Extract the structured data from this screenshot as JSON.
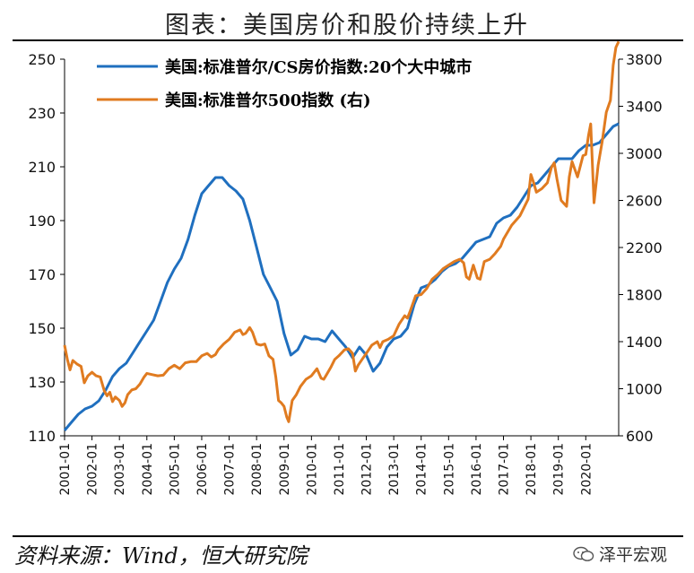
{
  "header": {
    "title": "图表：美国房价和股价持续上升"
  },
  "footer": {
    "source": "资料来源：Wind，恒大研究院",
    "watermark": "泽平宏观"
  },
  "chart_data": {
    "type": "line",
    "title": "图表：美国房价和股价持续上升",
    "left_axis": {
      "ylim": [
        110,
        250
      ],
      "ticks": [
        110,
        130,
        150,
        170,
        190,
        210,
        230,
        250
      ]
    },
    "right_axis": {
      "ylim": [
        600,
        3800
      ],
      "ticks": [
        600,
        1000,
        1400,
        1800,
        2200,
        2600,
        3000,
        3400,
        3800
      ]
    },
    "x_ticks": [
      "2001-01",
      "2002-01",
      "2003-01",
      "2004-01",
      "2005-01",
      "2006-01",
      "2007-01",
      "2008-01",
      "2009-01",
      "2010-01",
      "2011-01",
      "2012-01",
      "2013-01",
      "2014-01",
      "2015-01",
      "2016-01",
      "2017-01",
      "2018-01",
      "2019-01",
      "2020-01"
    ],
    "x_range": [
      2001.0,
      2021.2
    ],
    "legend_placement": "top-center",
    "grid": false,
    "series": [
      {
        "name": "美国:标准普尔/CS房价指数:20个大中城市",
        "axis": "left",
        "color": "#1f6fbf",
        "x": [
          2001.0,
          2001.25,
          2001.5,
          2001.75,
          2002.0,
          2002.25,
          2002.5,
          2002.75,
          2003.0,
          2003.25,
          2003.5,
          2003.75,
          2004.0,
          2004.25,
          2004.5,
          2004.75,
          2005.0,
          2005.25,
          2005.5,
          2005.75,
          2006.0,
          2006.25,
          2006.5,
          2006.75,
          2007.0,
          2007.25,
          2007.5,
          2007.75,
          2008.0,
          2008.25,
          2008.5,
          2008.75,
          2009.0,
          2009.25,
          2009.5,
          2009.75,
          2010.0,
          2010.25,
          2010.5,
          2010.75,
          2011.0,
          2011.25,
          2011.5,
          2011.75,
          2012.0,
          2012.25,
          2012.5,
          2012.75,
          2013.0,
          2013.25,
          2013.5,
          2013.75,
          2014.0,
          2014.25,
          2014.5,
          2014.75,
          2015.0,
          2015.25,
          2015.5,
          2015.75,
          2016.0,
          2016.25,
          2016.5,
          2016.75,
          2017.0,
          2017.25,
          2017.5,
          2017.75,
          2018.0,
          2018.25,
          2018.5,
          2018.75,
          2019.0,
          2019.25,
          2019.5,
          2019.75,
          2020.0,
          2020.25,
          2020.5,
          2020.75,
          2021.0,
          2021.2
        ],
        "values": [
          112,
          115,
          118,
          120,
          121,
          123,
          127,
          132,
          135,
          137,
          141,
          145,
          149,
          153,
          160,
          167,
          172,
          176,
          183,
          192,
          200,
          203,
          206,
          206,
          203,
          201,
          198,
          190,
          180,
          170,
          165,
          160,
          148,
          140,
          142,
          147,
          146,
          146,
          145,
          149,
          146,
          143,
          139,
          143,
          140,
          134,
          137,
          143,
          146,
          147,
          150,
          159,
          165,
          166,
          168,
          171,
          173,
          174,
          176,
          179,
          182,
          183,
          184,
          189,
          191,
          192,
          195,
          199,
          203,
          204,
          207,
          210,
          213,
          213,
          213,
          216,
          218,
          218,
          219,
          222,
          225,
          226
        ]
      },
      {
        "name": "美国:标准普尔500指数 (右)",
        "axis": "right",
        "color": "#e07b20",
        "x": [
          2001.0,
          2001.1,
          2001.2,
          2001.3,
          2001.45,
          2001.6,
          2001.72,
          2001.85,
          2002.0,
          2002.15,
          2002.3,
          2002.45,
          2002.55,
          2002.65,
          2002.75,
          2002.85,
          2003.0,
          2003.1,
          2003.2,
          2003.3,
          2003.45,
          2003.6,
          2003.75,
          2003.9,
          2004.0,
          2004.2,
          2004.4,
          2004.6,
          2004.8,
          2005.0,
          2005.2,
          2005.4,
          2005.6,
          2005.8,
          2006.0,
          2006.2,
          2006.35,
          2006.5,
          2006.6,
          2006.8,
          2007.0,
          2007.2,
          2007.4,
          2007.5,
          2007.6,
          2007.75,
          2007.85,
          2008.0,
          2008.15,
          2008.3,
          2008.45,
          2008.6,
          2008.7,
          2008.8,
          2008.9,
          2009.0,
          2009.1,
          2009.17,
          2009.3,
          2009.45,
          2009.6,
          2009.8,
          2010.0,
          2010.2,
          2010.35,
          2010.45,
          2010.55,
          2010.7,
          2010.85,
          2011.0,
          2011.2,
          2011.35,
          2011.5,
          2011.6,
          2011.7,
          2011.85,
          2012.0,
          2012.2,
          2012.4,
          2012.5,
          2012.6,
          2012.8,
          2013.0,
          2013.2,
          2013.4,
          2013.5,
          2013.6,
          2013.8,
          2014.0,
          2014.2,
          2014.4,
          2014.6,
          2014.8,
          2015.0,
          2015.2,
          2015.4,
          2015.55,
          2015.65,
          2015.75,
          2015.9,
          2016.05,
          2016.15,
          2016.3,
          2016.5,
          2016.7,
          2016.9,
          2017.0,
          2017.3,
          2017.6,
          2017.9,
          2018.0,
          2018.1,
          2018.2,
          2018.4,
          2018.6,
          2018.75,
          2018.85,
          2018.95,
          2019.1,
          2019.3,
          2019.4,
          2019.5,
          2019.7,
          2019.9,
          2020.0,
          2020.1,
          2020.18,
          2020.3,
          2020.45,
          2020.6,
          2020.75,
          2020.9,
          2021.0,
          2021.1,
          2021.2
        ],
        "values": [
          1370,
          1250,
          1160,
          1240,
          1210,
          1190,
          1050,
          1110,
          1140,
          1110,
          1100,
          980,
          940,
          970,
          890,
          930,
          900,
          850,
          880,
          950,
          990,
          1000,
          1040,
          1100,
          1130,
          1120,
          1110,
          1115,
          1170,
          1200,
          1170,
          1220,
          1230,
          1230,
          1280,
          1300,
          1270,
          1290,
          1330,
          1380,
          1420,
          1480,
          1500,
          1460,
          1470,
          1520,
          1480,
          1380,
          1370,
          1380,
          1280,
          1250,
          1100,
          900,
          880,
          850,
          760,
          720,
          900,
          950,
          1020,
          1080,
          1110,
          1170,
          1090,
          1080,
          1120,
          1180,
          1250,
          1280,
          1330,
          1340,
          1300,
          1150,
          1200,
          1250,
          1300,
          1370,
          1400,
          1350,
          1400,
          1420,
          1450,
          1550,
          1620,
          1600,
          1660,
          1790,
          1800,
          1850,
          1930,
          1970,
          2020,
          2050,
          2080,
          2100,
          2070,
          1950,
          1930,
          2050,
          1940,
          1930,
          2080,
          2100,
          2150,
          2210,
          2270,
          2390,
          2470,
          2610,
          2820,
          2750,
          2670,
          2700,
          2750,
          2880,
          2920,
          2780,
          2600,
          2550,
          2800,
          2930,
          2800,
          2980,
          2990,
          3150,
          3250,
          2580,
          2900,
          3100,
          3350,
          3450,
          3750,
          3900,
          3950
        ]
      }
    ]
  }
}
